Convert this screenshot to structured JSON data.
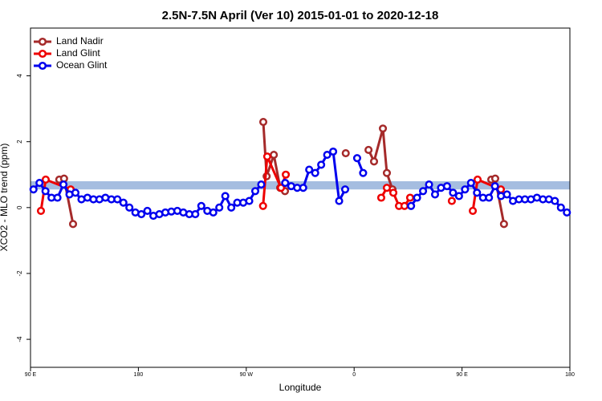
{
  "chart_data": {
    "type": "line",
    "title": "2.5N-7.5N April (Ver 10)   2015-01-01 to 2020-12-18",
    "x_label": "Longitude",
    "y_label": "XCO2 - MLO trend (ppm)",
    "xlim": [
      90,
      540
    ],
    "ylim": [
      -4.85,
      5.45
    ],
    "xticks": [
      {
        "value": 90,
        "label": "90 E"
      },
      180,
      {
        "value": 270,
        "label": "90 W"
      },
      {
        "value": 360,
        "label": "0"
      },
      {
        "value": 450,
        "label": "90 E"
      },
      {
        "value": 540,
        "label": "180"
      }
    ],
    "yticks": [
      -4,
      -2,
      0,
      2,
      4
    ],
    "legend": "top-left",
    "band": {
      "color": "#a5bde0",
      "values": [
        0.55,
        0.8
      ]
    },
    "series": [
      {
        "name": "Land Nadir",
        "color": "#a52a2a",
        "x": [
          114,
          118,
          125.5,
          200,
          284.2,
          287,
          293,
          298.3,
          302.3,
          330,
          353,
          360,
          372,
          376.6,
          384,
          387.3,
          392,
          430,
          474.4,
          477.7,
          485
        ],
        "values": [
          0.85,
          0.88,
          -0.5,
          null,
          2.6,
          0.95,
          1.6,
          0.6,
          0.5,
          null,
          1.65,
          null,
          1.75,
          1.4,
          2.4,
          1.05,
          0.55,
          null,
          0.85,
          0.88,
          -0.5
        ]
      },
      {
        "name": "Land Glint",
        "color": "#ee0000",
        "x": [
          98.7,
          102.7,
          123.5,
          200,
          284,
          287.5,
          299,
          303,
          340,
          382.6,
          387.3,
          392.7,
          397.4,
          402,
          406.7,
          420,
          441.5,
          450,
          459,
          463,
          482.4
        ],
        "values": [
          -0.1,
          0.85,
          0.55,
          null,
          0.05,
          1.55,
          0.6,
          1.0,
          null,
          0.3,
          0.6,
          0.45,
          0.05,
          0.05,
          0.3,
          null,
          0.2,
          null,
          -0.1,
          0.85,
          0.55
        ]
      },
      {
        "name": "Ocean Glint",
        "color": "#0000ee",
        "x": [
          92.5,
          97.5,
          102.5,
          107.5,
          112.5,
          117.5,
          122.5,
          127.5,
          132.5,
          137.5,
          142.5,
          147.5,
          152.5,
          157.5,
          162.5,
          167.5,
          172.5,
          177.5,
          182.5,
          187.5,
          192.5,
          197.5,
          202.5,
          207.5,
          212.5,
          217.5,
          222.5,
          227.5,
          232.5,
          237.5,
          242.5,
          247.5,
          252.5,
          257.5,
          262.5,
          267.5,
          272.5,
          277.5,
          282.5,
          292.5,
          302.5,
          307.5,
          312.5,
          317.5,
          322.5,
          327.5,
          332.5,
          337.5,
          342.5,
          347.5,
          352.5,
          357.5,
          362.5,
          367.5,
          387.5,
          407.5,
          412.5,
          417.5,
          422.5,
          427.5,
          432.5,
          437.5,
          442.5,
          447.5,
          452.5,
          457.5,
          462.5,
          467.5,
          472.5,
          477.5,
          482.5,
          487.5,
          492.5,
          497.5,
          502.5,
          507.5,
          512.5,
          517.5,
          522.5,
          527.5,
          532.5,
          537.5
        ],
        "values": [
          0.55,
          0.75,
          0.5,
          0.3,
          0.3,
          0.7,
          0.4,
          0.45,
          0.25,
          0.3,
          0.25,
          0.25,
          0.3,
          0.25,
          0.25,
          0.15,
          0,
          -0.15,
          -0.2,
          -0.1,
          -0.25,
          -0.2,
          -0.15,
          -0.12,
          -0.1,
          -0.15,
          -0.2,
          -0.2,
          0.05,
          -0.1,
          -0.15,
          0,
          0.35,
          0,
          0.15,
          0.15,
          0.2,
          0.5,
          0.7,
          null,
          0.75,
          0.65,
          0.6,
          0.6,
          1.15,
          1.05,
          1.3,
          1.6,
          1.7,
          0.2,
          0.55,
          null,
          1.5,
          1.05,
          null,
          0.05,
          0.3,
          0.5,
          0.7,
          0.4,
          0.6,
          0.65,
          0.45,
          0.35,
          0.55,
          0.75,
          0.45,
          0.3,
          0.3,
          0.65,
          0.35,
          0.4,
          0.2,
          0.25,
          0.25,
          0.25,
          0.3,
          0.25,
          0.25,
          0.2,
          0,
          -0.15
        ]
      }
    ]
  }
}
